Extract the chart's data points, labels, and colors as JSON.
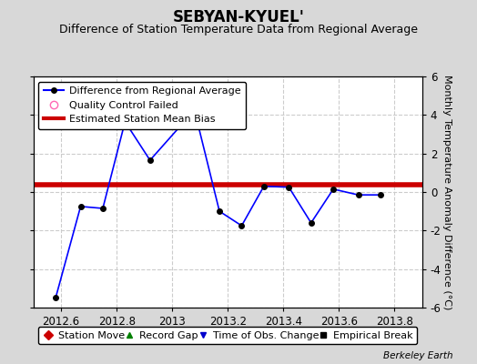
{
  "title": "SEBYAN-KYUEL'",
  "subtitle": "Difference of Station Temperature Data from Regional Average",
  "ylabel": "Monthly Temperature Anomaly Difference (°C)",
  "watermark": "Berkeley Earth",
  "xlim": [
    2012.5,
    2013.9
  ],
  "ylim": [
    -6,
    6
  ],
  "yticks": [
    -6,
    -4,
    -2,
    0,
    2,
    4,
    6
  ],
  "xticks": [
    2012.6,
    2012.8,
    2013.0,
    2013.2,
    2013.4,
    2013.6,
    2013.8
  ],
  "xtick_labels": [
    "2012.6",
    "2012.8",
    "2013",
    "2013.2",
    "2013.4",
    "2013.6",
    "2013.8"
  ],
  "line_x": [
    2012.58,
    2012.67,
    2012.75,
    2012.83,
    2012.92,
    2013.08,
    2013.17,
    2013.25,
    2013.33,
    2013.42,
    2013.5,
    2013.58,
    2013.67,
    2013.75
  ],
  "line_y": [
    -5.5,
    -0.75,
    -0.85,
    3.65,
    1.65,
    4.25,
    -1.0,
    -1.75,
    0.3,
    0.25,
    -1.6,
    0.15,
    -0.15,
    -0.15
  ],
  "bias_value": 0.4,
  "line_color": "#0000ff",
  "bias_color": "#cc0000",
  "marker_color": "#000000",
  "background_color": "#d8d8d8",
  "plot_bg_color": "#ffffff",
  "title_fontsize": 12,
  "subtitle_fontsize": 9,
  "ylabel_fontsize": 8,
  "tick_fontsize": 8.5,
  "legend1_fontsize": 8,
  "legend2_fontsize": 8
}
